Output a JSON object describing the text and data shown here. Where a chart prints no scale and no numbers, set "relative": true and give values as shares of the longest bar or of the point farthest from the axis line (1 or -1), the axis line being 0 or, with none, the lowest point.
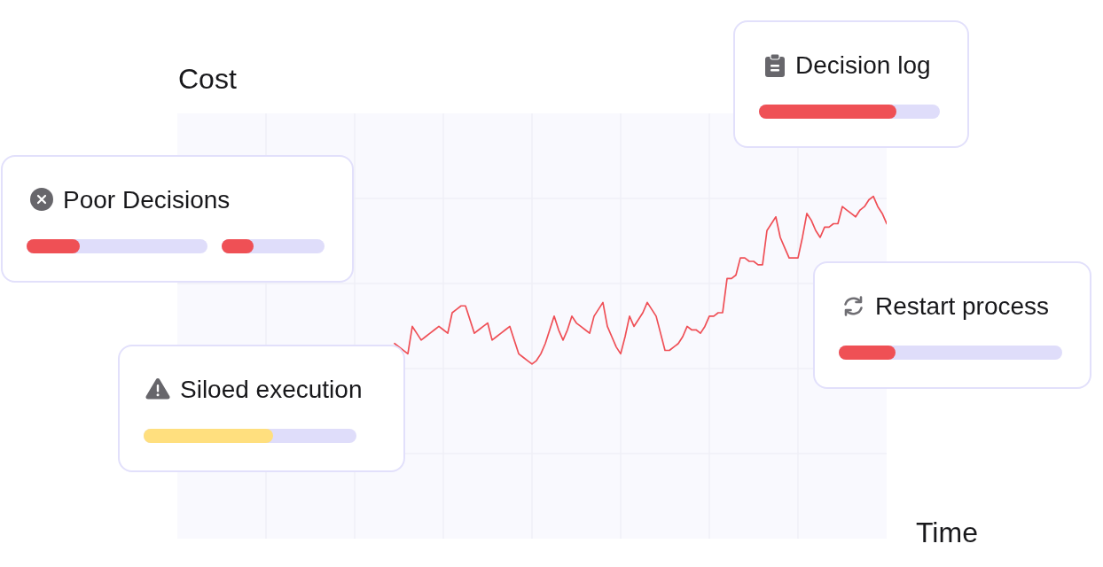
{
  "chart_data": {
    "type": "line",
    "relative": true,
    "ylabel": "Cost",
    "grid": true,
    "color": "#ef4f56",
    "categories": [
      null,
      null,
      null,
      null,
      null,
      null,
      null,
      null,
      null,
      null,
      null,
      null,
      null,
      null,
      null,
      null,
      null,
      null,
      null,
      null,
      null,
      null,
      null,
      null,
      null,
      null,
      null,
      null,
      null,
      null,
      null,
      null,
      null,
      null,
      null,
      null,
      null,
      null,
      null,
      null,
      null,
      null,
      null,
      null,
      null,
      null,
      null,
      null,
      null,
      null,
      null,
      null,
      null,
      null,
      null,
      null,
      null,
      null,
      null,
      null,
      null,
      null,
      null,
      null,
      null,
      null,
      null,
      null,
      null,
      null,
      null,
      null,
      null,
      null,
      null,
      null,
      null,
      null,
      null,
      null,
      null,
      null,
      null,
      null,
      null,
      null,
      null,
      null,
      null,
      null,
      null,
      null,
      null,
      null,
      null,
      null,
      null,
      null,
      null,
      null,
      null,
      null,
      null,
      null,
      null,
      null,
      null,
      null,
      null,
      null,
      null,
      null,
      null,
      null,
      null,
      null,
      null,
      null,
      null,
      null,
      null,
      null,
      null,
      null,
      null,
      null,
      null,
      null,
      null,
      null,
      null,
      null,
      null,
      null,
      null,
      null,
      null,
      null,
      null,
      null,
      null,
      null,
      null,
      null,
      null,
      null,
      null,
      null,
      null,
      null,
      null,
      null,
      null,
      null,
      null,
      null,
      null,
      null,
      null,
      null,
      null
    ],
    "values": [
      null,
      null,
      null,
      null,
      null,
      null,
      null,
      null,
      null,
      null,
      null,
      null,
      null,
      null,
      null,
      null,
      null,
      null,
      null,
      null,
      null,
      null,
      null,
      null,
      null,
      null,
      null,
      null,
      null,
      null,
      null,
      null,
      null,
      null,
      null,
      null,
      null,
      null,
      null,
      null,
      null,
      null,
      null,
      null,
      null,
      null,
      null,
      null,
      null,
      0.57,
      null,
      null,
      0.54,
      0.62,
      0.6,
      0.58,
      0.59,
      0.6,
      0.61,
      0.62,
      0.61,
      0.6,
      0.66,
      0.67,
      0.68,
      0.68,
      0.64,
      0.6,
      0.61,
      0.62,
      0.63,
      0.58,
      0.59,
      0.6,
      0.61,
      0.62,
      0.58,
      0.54,
      0.53,
      0.52,
      0.51,
      0.52,
      0.54,
      0.57,
      0.61,
      0.65,
      0.61,
      0.58,
      0.61,
      0.65,
      0.63,
      0.62,
      0.61,
      0.6,
      0.65,
      0.67,
      0.69,
      0.62,
      0.59,
      0.56,
      0.54,
      0.59,
      0.65,
      0.62,
      0.64,
      0.66,
      0.69,
      0.67,
      0.65,
      0.6,
      0.55,
      0.55,
      0.56,
      0.57,
      0.59,
      0.62,
      0.61,
      0.61,
      0.6,
      0.62,
      0.65,
      0.65,
      0.66,
      0.66,
      0.76,
      0.76,
      0.77,
      0.82,
      0.82,
      0.81,
      0.81,
      0.8,
      0.8,
      0.9,
      0.92,
      0.94,
      0.88,
      0.85,
      0.82,
      0.82,
      0.82,
      0.88,
      0.95,
      0.93,
      0.9,
      0.88,
      0.91,
      0.91,
      0.92,
      0.92,
      0.97,
      0.96,
      0.95,
      0.94,
      0.96,
      0.97,
      0.99,
      1,
      0.97,
      0.95,
      0.92
    ],
    "annotations": [
      "Decision log",
      "Poor Decisions",
      "Restart process",
      "Siloed execution",
      "Time"
    ]
  }
}
